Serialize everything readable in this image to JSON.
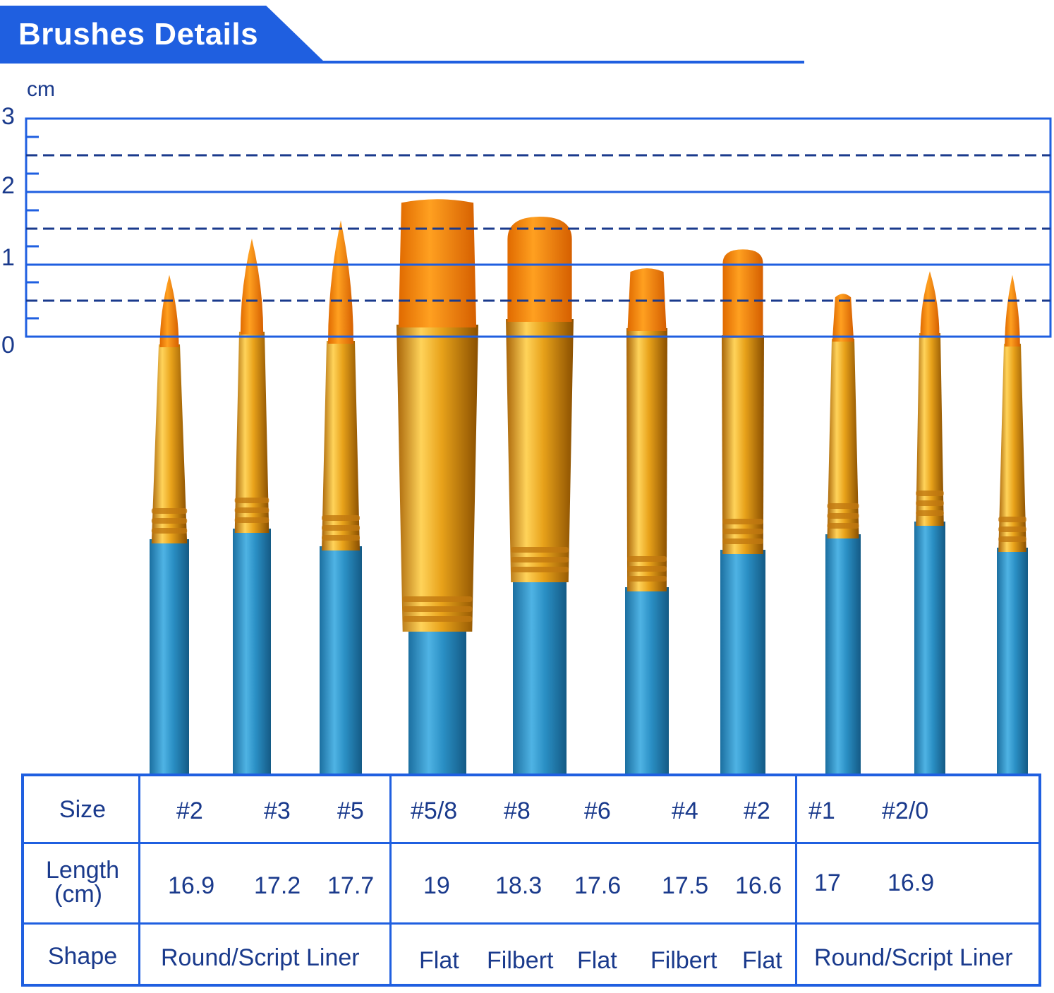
{
  "header": {
    "title": "Brushes Details"
  },
  "ruler": {
    "unit": "cm",
    "ticks": [
      "0",
      "1",
      "2",
      "3"
    ],
    "max_cm": 3
  },
  "colors": {
    "accent": "#1f5fe0",
    "text": "#1a3a8c",
    "bristle": "#ff8c00",
    "ferrule": "#e8a21a",
    "handle": "#2a8fc4"
  },
  "brushes": [
    {
      "tip_cm": 0.85,
      "type": "round"
    },
    {
      "tip_cm": 1.35,
      "type": "round"
    },
    {
      "tip_cm": 1.6,
      "type": "round"
    },
    {
      "tip_cm": 1.9,
      "type": "flat"
    },
    {
      "tip_cm": 1.65,
      "type": "filbert"
    },
    {
      "tip_cm": 0.95,
      "type": "flat"
    },
    {
      "tip_cm": 1.2,
      "type": "filbert"
    },
    {
      "tip_cm": 0.6,
      "type": "flat"
    },
    {
      "tip_cm": 0.9,
      "type": "round"
    },
    {
      "tip_cm": 0.85,
      "type": "round"
    }
  ],
  "table": {
    "headers": {
      "size": "Size",
      "length_line1": "Length",
      "length_line2": "(cm)",
      "shape": "Shape"
    },
    "sizes": [
      "#2",
      "#3",
      "#5",
      "#5/8",
      "#8",
      "#6",
      "#4",
      "#2",
      "#1",
      "#2/0"
    ],
    "lengths": [
      "16.9",
      "17.2",
      "17.7",
      "19",
      "18.3",
      "17.6",
      "17.5",
      "16.6",
      "17",
      "16.9"
    ],
    "shapes": {
      "group1": "Round/Script Liner",
      "flat1": "Flat",
      "filbert1": "Filbert",
      "flat2": "Flat",
      "filbert2": "Filbert",
      "flat3": "Flat",
      "group3": "Round/Script Liner"
    }
  }
}
